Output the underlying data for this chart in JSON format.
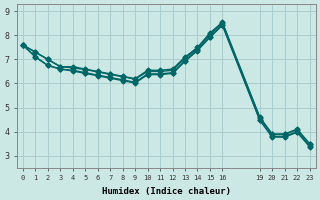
{
  "xlabel": "Humidex (Indice chaleur)",
  "bg_color": "#cce8e4",
  "grid_color": "#aacccc",
  "line_color": "#006666",
  "ylim": [
    2.5,
    9.3
  ],
  "xlim": [
    -0.5,
    23.5
  ],
  "x_indices": [
    0,
    1,
    2,
    3,
    4,
    5,
    6,
    7,
    8,
    9,
    10,
    11,
    12,
    13,
    14,
    15,
    16,
    19,
    20,
    21,
    22,
    23
  ],
  "series": [
    [
      7.6,
      7.3,
      7.0,
      6.7,
      6.7,
      6.6,
      6.5,
      6.4,
      6.3,
      6.2,
      6.55,
      6.55,
      6.6,
      7.1,
      7.5,
      8.1,
      8.55,
      4.6,
      3.9,
      3.9,
      4.1,
      3.5
    ],
    [
      7.6,
      7.3,
      7.0,
      6.7,
      6.65,
      6.58,
      6.48,
      6.38,
      6.28,
      6.18,
      6.5,
      6.5,
      6.55,
      7.05,
      7.45,
      8.05,
      8.5,
      4.58,
      3.88,
      3.88,
      4.08,
      3.48
    ],
    [
      7.6,
      7.1,
      6.75,
      6.6,
      6.55,
      6.45,
      6.35,
      6.25,
      6.15,
      6.05,
      6.4,
      6.4,
      6.45,
      6.95,
      7.4,
      7.95,
      8.45,
      4.5,
      3.8,
      3.8,
      4.0,
      3.4
    ],
    [
      7.6,
      7.1,
      6.75,
      6.6,
      6.52,
      6.42,
      6.32,
      6.22,
      6.12,
      6.02,
      6.37,
      6.37,
      6.42,
      6.92,
      7.37,
      7.92,
      8.42,
      4.47,
      3.77,
      3.77,
      3.97,
      3.37
    ]
  ],
  "marker": "D",
  "markersize": 2.5,
  "linewidth": 1.0,
  "yticks": [
    3,
    4,
    5,
    6,
    7,
    8,
    9
  ],
  "x_tick_labels": [
    "0",
    "1",
    "2",
    "3",
    "4",
    "5",
    "6",
    "7",
    "8",
    "9",
    "10",
    "11",
    "12",
    "13",
    "14",
    "15",
    "16",
    "19",
    "20",
    "21",
    "22",
    "23"
  ]
}
